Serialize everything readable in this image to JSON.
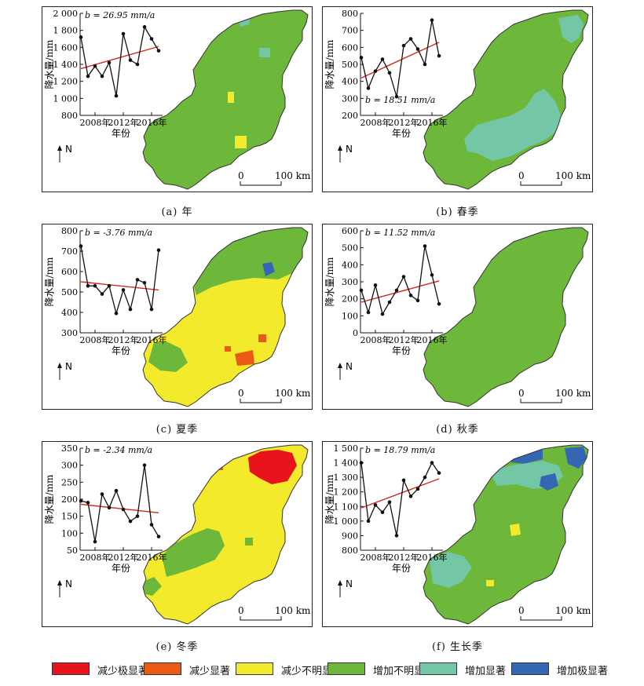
{
  "colors": {
    "decrease_extreme": "#e8141c",
    "decrease_significant": "#ea5a14",
    "decrease_insignificant": "#f2ea2a",
    "increase_insignificant": "#6db83a",
    "increase_significant": "#73c6a6",
    "increase_extreme": "#3566b4",
    "trend_line": "#d42a1e",
    "map_outline": "#333333"
  },
  "common": {
    "north_label": "N",
    "scale_zero": "0",
    "scale_label": "100 km",
    "xlabel": "年份",
    "ylabel": "降水量/mm",
    "year_ticks": [
      "2008年",
      "2012年",
      "2016年"
    ]
  },
  "legend": [
    {
      "label": "减少极显著",
      "color_key": "decrease_extreme"
    },
    {
      "label": "减少显著",
      "color_key": "decrease_significant"
    },
    {
      "label": "减少不明显",
      "color_key": "decrease_insignificant"
    },
    {
      "label": "增加不明显",
      "color_key": "increase_insignificant"
    },
    {
      "label": "增加显著",
      "color_key": "increase_significant"
    },
    {
      "label": "增加极显著",
      "color_key": "increase_extreme"
    }
  ],
  "chart_data": [
    {
      "type": "line",
      "caption": "(a) 年",
      "slope_label": "b = 26.95 mm/a",
      "years": [
        2006,
        2007,
        2008,
        2009,
        2010,
        2011,
        2012,
        2013,
        2014,
        2015,
        2016,
        2017
      ],
      "values": [
        1720,
        1260,
        1380,
        1260,
        1420,
        1030,
        1760,
        1450,
        1400,
        1840,
        1700,
        1560
      ],
      "trend": [
        1350,
        1610
      ],
      "yticks": [
        "2 000",
        "1 800",
        "1 600",
        "1 400",
        "1 200",
        "1 000",
        "800"
      ],
      "ylim": [
        800,
        2000
      ],
      "map_base": "increase_insignificant"
    },
    {
      "type": "line",
      "caption": "(b) 春季",
      "slope_label": "b = 18.51 mm/a",
      "years": [
        2006,
        2007,
        2008,
        2009,
        2010,
        2011,
        2012,
        2013,
        2014,
        2015,
        2016,
        2017
      ],
      "values": [
        540,
        360,
        460,
        530,
        450,
        310,
        610,
        650,
        590,
        500,
        760,
        550
      ],
      "trend": [
        420,
        630
      ],
      "yticks": [
        "800",
        "700",
        "600",
        "500",
        "400",
        "300",
        "200"
      ],
      "ylim": [
        200,
        800
      ],
      "map_base": "increase_insignificant"
    },
    {
      "type": "line",
      "caption": "(c) 夏季",
      "slope_label": "b = -3.76 mm/a",
      "years": [
        2006,
        2007,
        2008,
        2009,
        2010,
        2011,
        2012,
        2013,
        2014,
        2015,
        2016,
        2017
      ],
      "values": [
        725,
        530,
        530,
        490,
        530,
        395,
        510,
        415,
        560,
        545,
        415,
        705
      ],
      "trend": [
        550,
        510
      ],
      "yticks": [
        "800",
        "700",
        "600",
        "500",
        "400",
        "300"
      ],
      "ylim": [
        300,
        800
      ],
      "map_base": "decrease_insignificant"
    },
    {
      "type": "line",
      "caption": "(d) 秋季",
      "slope_label": "b = 11.52 mm/a",
      "years": [
        2006,
        2007,
        2008,
        2009,
        2010,
        2011,
        2012,
        2013,
        2014,
        2015,
        2016,
        2017
      ],
      "values": [
        250,
        120,
        280,
        110,
        180,
        250,
        330,
        220,
        190,
        510,
        340,
        170
      ],
      "trend": [
        180,
        305
      ],
      "yticks": [
        "600",
        "500",
        "400",
        "300",
        "200",
        "100",
        "0"
      ],
      "ylim": [
        0,
        600
      ],
      "map_base": "increase_insignificant"
    },
    {
      "type": "line",
      "caption": "(e) 冬季",
      "slope_label": "b = -2.34 mm/a",
      "years": [
        2006,
        2007,
        2008,
        2009,
        2010,
        2011,
        2012,
        2013,
        2014,
        2015,
        2016,
        2017
      ],
      "values": [
        195,
        190,
        75,
        215,
        175,
        225,
        170,
        135,
        150,
        300,
        125,
        90
      ],
      "trend": [
        185,
        160
      ],
      "yticks": [
        "350",
        "300",
        "250",
        "200",
        "150",
        "100",
        "50"
      ],
      "ylim": [
        50,
        350
      ],
      "map_base": "decrease_insignificant"
    },
    {
      "type": "line",
      "caption": "(f) 生长季",
      "slope_label": "b = 18.79 mm/a",
      "years": [
        2006,
        2007,
        2008,
        2009,
        2010,
        2011,
        2012,
        2013,
        2014,
        2015,
        2016,
        2017
      ],
      "values": [
        1400,
        1000,
        1110,
        1060,
        1130,
        900,
        1280,
        1170,
        1220,
        1300,
        1400,
        1330
      ],
      "trend": [
        1090,
        1290
      ],
      "yticks": [
        "1 500",
        "1 400",
        "1 300",
        "1 200",
        "1 100",
        "1 000",
        "900",
        "800"
      ],
      "ylim": [
        800,
        1500
      ],
      "map_base": "increase_insignificant"
    }
  ]
}
